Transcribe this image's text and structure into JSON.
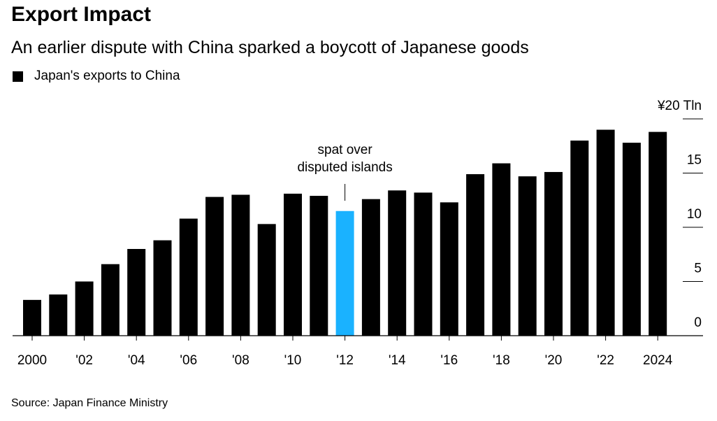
{
  "chart_data": {
    "type": "bar",
    "title": "Export Impact",
    "subtitle": "An earlier dispute with China sparked a boycott of Japanese goods",
    "legend": [
      {
        "label": "Japan's exports to China",
        "color": "#000000"
      }
    ],
    "categories": [
      "2000",
      "2001",
      "2002",
      "2003",
      "2004",
      "2005",
      "2006",
      "2007",
      "2008",
      "2009",
      "2010",
      "2011",
      "2012",
      "2013",
      "2014",
      "2015",
      "2016",
      "2017",
      "2018",
      "2019",
      "2020",
      "2021",
      "2022",
      "2023",
      "2024"
    ],
    "x_tick_labels": [
      "2000",
      "'02",
      "'04",
      "'06",
      "'08",
      "'10",
      "'12",
      "'14",
      "'16",
      "'18",
      "'20",
      "'22",
      "2024"
    ],
    "values": [
      3.3,
      3.8,
      5.0,
      6.6,
      8.0,
      8.8,
      10.8,
      12.8,
      13.0,
      10.3,
      13.1,
      12.9,
      11.5,
      12.6,
      13.4,
      13.2,
      12.3,
      14.9,
      15.9,
      14.7,
      15.1,
      18.0,
      19.0,
      17.8,
      18.8
    ],
    "highlight": {
      "category": "2012",
      "color": "#1ab2ff"
    },
    "bar_color": "#000000",
    "annotation": {
      "category": "2012",
      "text_lines": [
        "spat over",
        "disputed islands"
      ]
    },
    "ylim": [
      0,
      20
    ],
    "y_ticks": [
      0,
      5,
      10,
      15,
      20
    ],
    "y_tick_labels": [
      "0",
      "5",
      "10",
      "15",
      "¥20 Tln"
    ],
    "legend_position": "top-left"
  },
  "source": "Source: Japan Finance Ministry"
}
